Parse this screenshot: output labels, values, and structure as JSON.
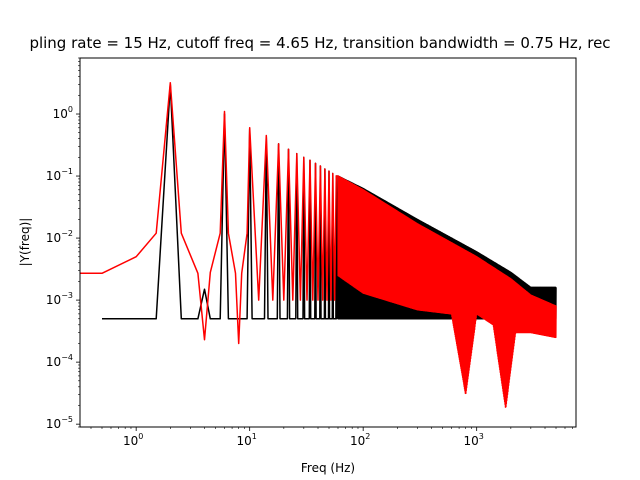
{
  "chart_data": {
    "type": "line",
    "title": "pling rate = 15 Hz, cutoff freq = 4.65 Hz, transition bandwidth = 0.75 Hz, rec",
    "xlabel": "Freq (Hz)",
    "ylabel": "|Y(freq)|",
    "xscale": "log",
    "yscale": "log",
    "xlim": [
      0.32,
      7500
    ],
    "ylim": [
      9e-06,
      8
    ],
    "grid": false,
    "x_ticks": [
      {
        "value": 1,
        "base": "10",
        "exp": "0"
      },
      {
        "value": 10,
        "base": "10",
        "exp": "1"
      },
      {
        "value": 100,
        "base": "10",
        "exp": "2"
      },
      {
        "value": 1000,
        "base": "10",
        "exp": "3"
      }
    ],
    "y_ticks": [
      {
        "value": 1e-05,
        "base": "10",
        "exp": "−5"
      },
      {
        "value": 0.0001,
        "base": "10",
        "exp": "−4"
      },
      {
        "value": 0.001,
        "base": "10",
        "exp": "−3"
      },
      {
        "value": 0.01,
        "base": "10",
        "exp": "−2"
      },
      {
        "value": 0.1,
        "base": "10",
        "exp": "−1"
      },
      {
        "value": 1,
        "base": "10",
        "exp": "0"
      }
    ],
    "series": [
      {
        "color": "#000000",
        "style": "line",
        "peaks": [
          {
            "x": 2,
            "y": 3.0
          },
          {
            "x": 4,
            "y": 0.0015
          },
          {
            "x": 6,
            "y": 1.0
          },
          {
            "x": 10,
            "y": 0.58
          },
          {
            "x": 14,
            "y": 0.42
          },
          {
            "x": 18,
            "y": 0.33
          },
          {
            "x": 22,
            "y": 0.27
          },
          {
            "x": 26,
            "y": 0.23
          },
          {
            "x": 30,
            "y": 0.2
          },
          {
            "x": 34,
            "y": 0.18
          },
          {
            "x": 38,
            "y": 0.16
          },
          {
            "x": 42,
            "y": 0.145
          },
          {
            "x": 46,
            "y": 0.13
          },
          {
            "x": 50,
            "y": 0.12
          },
          {
            "x": 54,
            "y": 0.11
          },
          {
            "x": 58,
            "y": 0.1
          }
        ],
        "floor": 0.0005,
        "upper_envelope": [
          [
            60,
            0.1
          ],
          [
            100,
            0.063
          ],
          [
            300,
            0.02
          ],
          [
            1000,
            0.006
          ],
          [
            2000,
            0.0028
          ],
          [
            3000,
            0.0016
          ],
          [
            5000,
            0.0016
          ]
        ],
        "lower_envelope": [
          [
            60,
            0.0005
          ],
          [
            5000,
            0.0005
          ]
        ],
        "x_range": [
          0.5,
          5000
        ]
      },
      {
        "color": "#ff0000",
        "style": "line",
        "points": [
          [
            0.32,
            0.0027
          ],
          [
            0.5,
            0.0027
          ],
          [
            1.0,
            0.005
          ],
          [
            1.5,
            0.012
          ],
          [
            2.0,
            3.2
          ],
          [
            2.5,
            0.012
          ],
          [
            3.5,
            0.0027
          ],
          [
            4.0,
            0.00023
          ],
          [
            4.5,
            0.0028
          ],
          [
            5.5,
            0.012
          ],
          [
            6.0,
            1.1
          ],
          [
            6.5,
            0.012
          ],
          [
            7.5,
            0.0027
          ],
          [
            8.0,
            0.0002
          ],
          [
            8.5,
            0.0027
          ],
          [
            9.5,
            0.012
          ],
          [
            10.0,
            0.6
          ]
        ],
        "peaks": [
          {
            "x": 14,
            "y": 0.45
          },
          {
            "x": 18,
            "y": 0.33
          },
          {
            "x": 22,
            "y": 0.27
          },
          {
            "x": 26,
            "y": 0.23
          },
          {
            "x": 30,
            "y": 0.2
          },
          {
            "x": 34,
            "y": 0.18
          },
          {
            "x": 38,
            "y": 0.16
          },
          {
            "x": 42,
            "y": 0.145
          },
          {
            "x": 46,
            "y": 0.13
          },
          {
            "x": 50,
            "y": 0.12
          },
          {
            "x": 54,
            "y": 0.11
          },
          {
            "x": 58,
            "y": 0.1
          }
        ],
        "upper_envelope": [
          [
            60,
            0.1
          ],
          [
            100,
            0.06
          ],
          [
            300,
            0.017
          ],
          [
            1000,
            0.005
          ],
          [
            2000,
            0.0022
          ],
          [
            3000,
            0.0012
          ],
          [
            5000,
            0.0008
          ]
        ],
        "lower_envelope": [
          [
            60,
            0.0025
          ],
          [
            100,
            0.0013
          ],
          [
            300,
            0.0007
          ],
          [
            600,
            0.0006
          ],
          [
            800,
            3e-05
          ],
          [
            1000,
            0.0006
          ],
          [
            1400,
            0.0004
          ],
          [
            1800,
            1.8e-05
          ],
          [
            2200,
            0.0003
          ],
          [
            3000,
            0.0003
          ],
          [
            5000,
            0.00025
          ]
        ],
        "x_range": [
          0.32,
          5000
        ]
      }
    ]
  }
}
